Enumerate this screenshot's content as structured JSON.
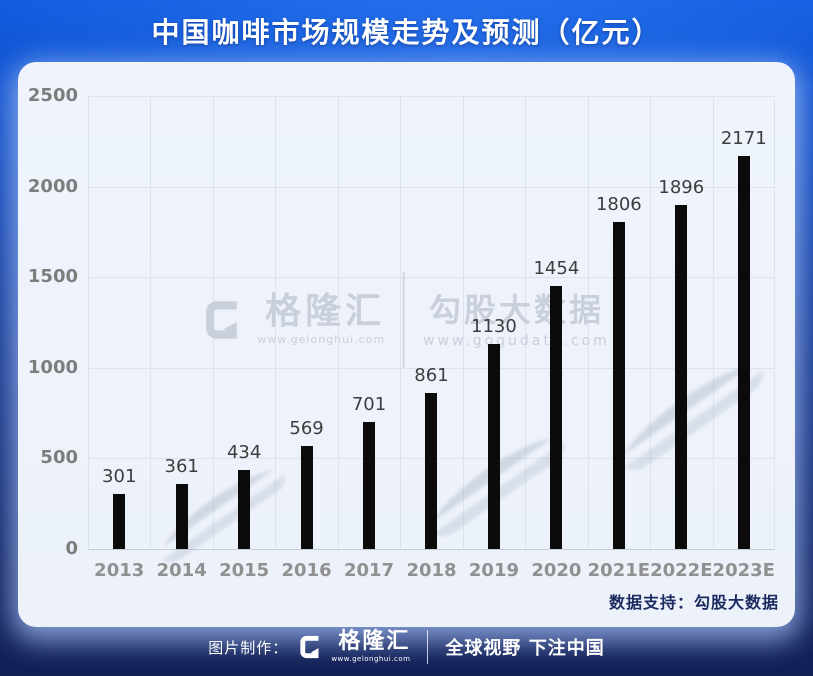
{
  "title": "中国咖啡市场规模走势及预测（亿元）",
  "chart_data": {
    "type": "bar",
    "categories": [
      "2013",
      "2014",
      "2015",
      "2016",
      "2017",
      "2018",
      "2019",
      "2020",
      "2021E",
      "2022E",
      "2023E"
    ],
    "values": [
      301,
      361,
      434,
      569,
      701,
      861,
      1130,
      1454,
      1806,
      1896,
      2171
    ],
    "title": "中国咖啡市场规模走势及预测（亿元）",
    "xlabel": "",
    "ylabel": "",
    "ylim": [
      0,
      2500
    ],
    "yticks": [
      0,
      500,
      1000,
      1500,
      2000,
      2500
    ],
    "grid": true,
    "legend": null,
    "bar_color": "#0b0b0b"
  },
  "watermark": {
    "gelonghui_name": "格隆汇",
    "gelonghui_url": "www.gelonghui.com",
    "gogu_name": "勾股大数据",
    "gogu_url": "www.gogudata.com"
  },
  "panel": {
    "data_support": "数据支持：勾股大数据"
  },
  "footer": {
    "credit_label": "图片制作：",
    "brand_name": "格隆汇",
    "brand_url": "www.gelonghui.com",
    "slogan": "全球视野 下注中国"
  },
  "colors": {
    "accent_blue": "#1157d2",
    "background_bottom": "#111f55",
    "panel_bg": "#eef3fb",
    "gridline": "#dde3ee",
    "bar": "#0b0b0b",
    "axis_text": "#7d7d7d",
    "value_text": "#3d3d3d",
    "watermark_gray": "#c9cfdb",
    "data_support_text": "#1b2b5f"
  }
}
